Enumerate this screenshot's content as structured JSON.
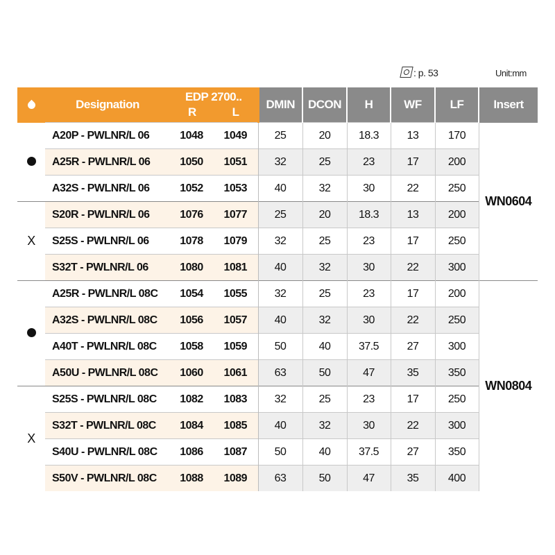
{
  "note": {
    "ref_icon": "insert-reference-icon",
    "ref_text": ": p. 53",
    "unit": "Unit:mm"
  },
  "header": {
    "coolant_icon": "droplet-icon",
    "designation": "Designation",
    "edp": "EDP 2700..",
    "r": "R",
    "l": "L",
    "dmin": "DMIN",
    "dcon": "DCON",
    "h": "H",
    "wf": "WF",
    "lf": "LF",
    "insert": "Insert"
  },
  "symbols": {
    "dot": "●",
    "x": "X"
  },
  "inserts": [
    "WN0604",
    "WN0804"
  ],
  "rows": [
    {
      "des": "A20P - PWLNR/L 06",
      "r": "1048",
      "l": "1049",
      "dmin": "25",
      "dcon": "20",
      "h": "18.3",
      "wf": "13",
      "lf": "170"
    },
    {
      "des": "A25R - PWLNR/L 06",
      "r": "1050",
      "l": "1051",
      "dmin": "32",
      "dcon": "25",
      "h": "23",
      "wf": "17",
      "lf": "200"
    },
    {
      "des": "A32S - PWLNR/L 06",
      "r": "1052",
      "l": "1053",
      "dmin": "40",
      "dcon": "32",
      "h": "30",
      "wf": "22",
      "lf": "250"
    },
    {
      "des": "S20R - PWLNR/L 06",
      "r": "1076",
      "l": "1077",
      "dmin": "25",
      "dcon": "20",
      "h": "18.3",
      "wf": "13",
      "lf": "200"
    },
    {
      "des": "S25S - PWLNR/L 06",
      "r": "1078",
      "l": "1079",
      "dmin": "32",
      "dcon": "25",
      "h": "23",
      "wf": "17",
      "lf": "250"
    },
    {
      "des": "S32T - PWLNR/L 06",
      "r": "1080",
      "l": "1081",
      "dmin": "40",
      "dcon": "32",
      "h": "30",
      "wf": "22",
      "lf": "300"
    },
    {
      "des": "A25R - PWLNR/L 08C",
      "r": "1054",
      "l": "1055",
      "dmin": "32",
      "dcon": "25",
      "h": "23",
      "wf": "17",
      "lf": "200"
    },
    {
      "des": "A32S - PWLNR/L 08C",
      "r": "1056",
      "l": "1057",
      "dmin": "40",
      "dcon": "32",
      "h": "30",
      "wf": "22",
      "lf": "250"
    },
    {
      "des": "A40T - PWLNR/L 08C",
      "r": "1058",
      "l": "1059",
      "dmin": "50",
      "dcon": "40",
      "h": "37.5",
      "wf": "27",
      "lf": "300"
    },
    {
      "des": "A50U - PWLNR/L 08C",
      "r": "1060",
      "l": "1061",
      "dmin": "63",
      "dcon": "50",
      "h": "47",
      "wf": "35",
      "lf": "350"
    },
    {
      "des": "S25S - PWLNR/L 08C",
      "r": "1082",
      "l": "1083",
      "dmin": "32",
      "dcon": "25",
      "h": "23",
      "wf": "17",
      "lf": "250"
    },
    {
      "des": "S32T - PWLNR/L 08C",
      "r": "1084",
      "l": "1085",
      "dmin": "40",
      "dcon": "32",
      "h": "30",
      "wf": "22",
      "lf": "300"
    },
    {
      "des": "S40U - PWLNR/L 08C",
      "r": "1086",
      "l": "1087",
      "dmin": "50",
      "dcon": "40",
      "h": "37.5",
      "wf": "27",
      "lf": "350"
    },
    {
      "des": "S50V - PWLNR/L 08C",
      "r": "1088",
      "l": "1089",
      "dmin": "63",
      "dcon": "50",
      "h": "47",
      "wf": "35",
      "lf": "400"
    }
  ],
  "colors": {
    "header_orange": "#f29a2e",
    "header_gray": "#8a8a8a",
    "shade_left": "#fdf3e7",
    "shade_right": "#eeeeee"
  }
}
